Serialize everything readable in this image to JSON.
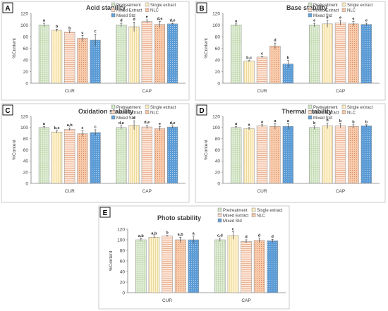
{
  "figure": {
    "series_styles": [
      {
        "name": "Pretreatment",
        "fill": "#e2efd9",
        "pattern": "grid"
      },
      {
        "name": "Single extract",
        "fill": "#fff2cc",
        "pattern": "vlines"
      },
      {
        "name": "Mixed Extract",
        "fill": "#fce4d6",
        "pattern": "hlines"
      },
      {
        "name": "NLC",
        "fill": "#f8cbad",
        "pattern": "dots"
      },
      {
        "name": "Mixed Std",
        "fill": "#5b9bd5",
        "pattern": "dots-light"
      }
    ]
  },
  "chart_data": [
    {
      "panel_letter": "A",
      "type": "bar",
      "title": "Acid stability",
      "ylabel": "%Content",
      "ylim": [
        0,
        120
      ],
      "yticks": [
        0,
        20,
        40,
        60,
        80,
        100,
        120
      ],
      "categories": [
        "CUR",
        "CAP"
      ],
      "legend": [
        "Pretreatment",
        "Single extract",
        "Mixed Extract",
        "NLC",
        "Mixed Std"
      ],
      "legend_placement": "top-right",
      "grid": false,
      "series": [
        {
          "name": "Pretreatment",
          "values": [
            100,
            100
          ],
          "errors": [
            3,
            3
          ],
          "labels": [
            "a",
            "d"
          ]
        },
        {
          "name": "Single extract",
          "values": [
            91,
            97
          ],
          "errors": [
            2,
            8
          ],
          "labels": [
            "b",
            "d"
          ]
        },
        {
          "name": "Mixed Extract",
          "values": [
            88,
            106
          ],
          "errors": [
            2,
            3
          ],
          "labels": [
            "b",
            "e"
          ]
        },
        {
          "name": "NLC",
          "values": [
            77,
            101
          ],
          "errors": [
            5,
            5
          ],
          "labels": [
            "c",
            "d,e"
          ]
        },
        {
          "name": "Mixed Std",
          "values": [
            74,
            102
          ],
          "errors": [
            10,
            1
          ],
          "labels": [
            "c",
            "d,e"
          ]
        }
      ]
    },
    {
      "panel_letter": "B",
      "type": "bar",
      "title": "Base stability",
      "ylabel": "%Content",
      "ylim": [
        0,
        120
      ],
      "yticks": [
        0,
        20,
        40,
        60,
        80,
        100,
        120
      ],
      "categories": [
        "CUR",
        "CAP"
      ],
      "legend": [
        "Pretreatment",
        "Single extract",
        "Mixed Extract",
        "NLC",
        "Mixed Std"
      ],
      "legend_placement": "top-right",
      "grid": false,
      "series": [
        {
          "name": "Pretreatment",
          "values": [
            100,
            100
          ],
          "errors": [
            2,
            3
          ],
          "labels": [
            "a",
            "e"
          ]
        },
        {
          "name": "Single extract",
          "values": [
            38,
            102
          ],
          "errors": [
            1,
            6
          ],
          "labels": [
            "b,c",
            "e"
          ]
        },
        {
          "name": "Mixed Extract",
          "values": [
            45,
            104
          ],
          "errors": [
            1,
            4
          ],
          "labels": [
            "c",
            "e"
          ]
        },
        {
          "name": "NLC",
          "values": [
            64,
            102
          ],
          "errors": [
            5,
            4
          ],
          "labels": [
            "d",
            "e"
          ]
        },
        {
          "name": "Mixed Std",
          "values": [
            33,
            101
          ],
          "errors": [
            6,
            2
          ],
          "labels": [
            "b",
            "e"
          ]
        }
      ]
    },
    {
      "panel_letter": "C",
      "type": "bar",
      "title": "Oxidation stability",
      "ylabel": "%Content",
      "ylim": [
        0,
        120
      ],
      "yticks": [
        0,
        20,
        40,
        60,
        80,
        100,
        120
      ],
      "categories": [
        "CUR",
        "CAP"
      ],
      "legend": [
        "Pretreatment",
        "Single extract",
        "Mixed Extract",
        "NLC",
        "Mixed Std"
      ],
      "legend_placement": "top-right",
      "grid": false,
      "series": [
        {
          "name": "Pretreatment",
          "values": [
            100,
            100
          ],
          "errors": [
            2,
            3
          ],
          "labels": [
            "a",
            "d,e"
          ]
        },
        {
          "name": "Single extract",
          "values": [
            92,
            104
          ],
          "errors": [
            2,
            8
          ],
          "labels": [
            "b,c",
            "d"
          ]
        },
        {
          "name": "Mixed Extract",
          "values": [
            97,
            101
          ],
          "errors": [
            2,
            3
          ],
          "labels": [
            "a,b",
            "d,e"
          ]
        },
        {
          "name": "NLC",
          "values": [
            89,
            98
          ],
          "errors": [
            5,
            4
          ],
          "labels": [
            "c",
            "e"
          ]
        },
        {
          "name": "Mixed Std",
          "values": [
            91,
            101
          ],
          "errors": [
            5,
            2
          ],
          "labels": [
            "c",
            "d,e"
          ]
        }
      ]
    },
    {
      "panel_letter": "D",
      "type": "bar",
      "title": "Thermal stability",
      "ylabel": "%Content",
      "ylim": [
        0,
        120
      ],
      "yticks": [
        0,
        20,
        40,
        60,
        80,
        100,
        120
      ],
      "categories": [
        "CUR",
        "CAP"
      ],
      "legend": [
        "Pretreatment",
        "Single extract",
        "Mixed Extract",
        "NLC",
        "Mixed Std"
      ],
      "legend_placement": "top-right",
      "grid": false,
      "series": [
        {
          "name": "Pretreatment",
          "values": [
            100,
            100
          ],
          "errors": [
            2,
            3
          ],
          "labels": [
            "a",
            "b"
          ]
        },
        {
          "name": "Single extract",
          "values": [
            98,
            103
          ],
          "errors": [
            2,
            5
          ],
          "labels": [
            "a",
            "b"
          ]
        },
        {
          "name": "Mixed Extract",
          "values": [
            103,
            103
          ],
          "errors": [
            2,
            4
          ],
          "labels": [
            "a",
            "b"
          ]
        },
        {
          "name": "NLC",
          "values": [
            102,
            102
          ],
          "errors": [
            5,
            3
          ],
          "labels": [
            "a",
            "b"
          ]
        },
        {
          "name": "Mixed Std",
          "values": [
            102,
            103
          ],
          "errors": [
            5,
            2
          ],
          "labels": [
            "a",
            "b"
          ]
        }
      ]
    },
    {
      "panel_letter": "E",
      "type": "bar",
      "title": "Photo stability",
      "ylabel": "%Content",
      "ylim": [
        0,
        120
      ],
      "yticks": [
        0,
        20,
        40,
        60,
        80,
        100,
        120
      ],
      "categories": [
        "CUR",
        "CAP"
      ],
      "legend": [
        "Pretreatment",
        "Single extract",
        "Mixed Extract",
        "NLC",
        "Mixed Std"
      ],
      "legend_placement": "top-right",
      "grid": false,
      "series": [
        {
          "name": "Pretreatment",
          "values": [
            100,
            100
          ],
          "errors": [
            2,
            3
          ],
          "labels": [
            "a,b",
            "c,d"
          ]
        },
        {
          "name": "Single extract",
          "values": [
            105,
            108
          ],
          "errors": [
            2,
            7
          ],
          "labels": [
            "a,b",
            "c"
          ]
        },
        {
          "name": "Mixed Extract",
          "values": [
            107,
            97
          ],
          "errors": [
            1,
            3
          ],
          "labels": [
            "b",
            "d"
          ]
        },
        {
          "name": "NLC",
          "values": [
            100,
            99
          ],
          "errors": [
            5,
            4
          ],
          "labels": [
            "a,b",
            "d"
          ]
        },
        {
          "name": "Mixed Std",
          "values": [
            100,
            98
          ],
          "errors": [
            7,
            3
          ],
          "labels": [
            "a",
            "d"
          ]
        }
      ]
    }
  ]
}
